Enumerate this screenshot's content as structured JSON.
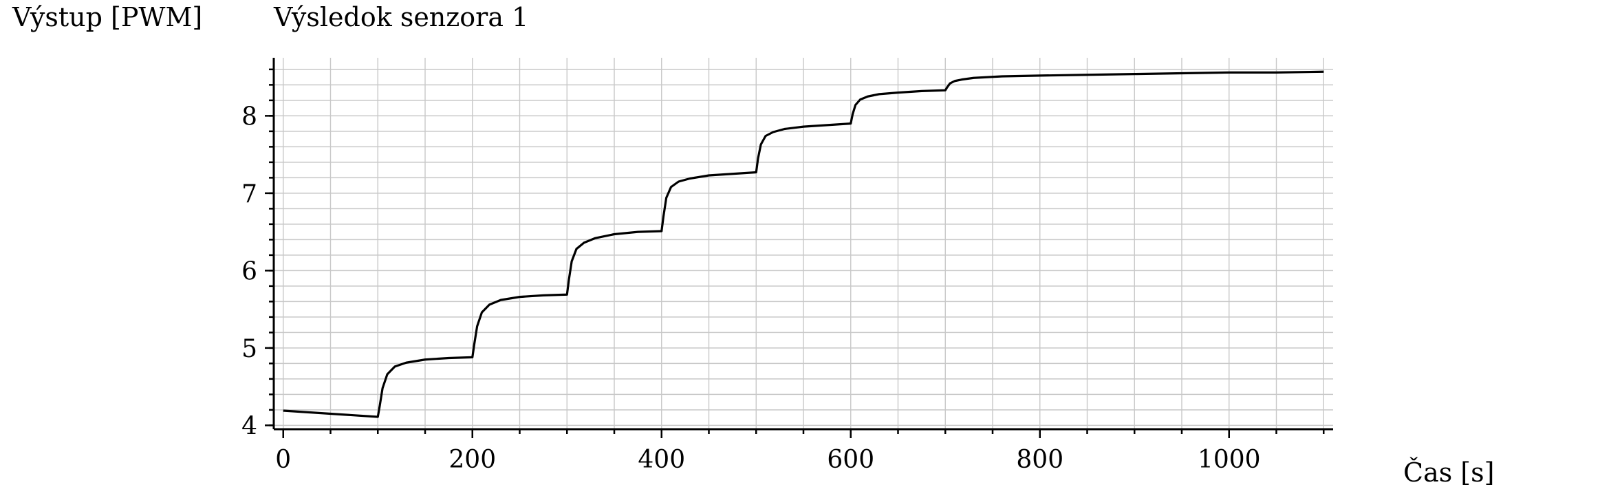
{
  "chart_data": {
    "type": "line",
    "title": "Výsledok senzora 1",
    "xlabel": "Čas [s]",
    "ylabel": "Výstup [PWM]",
    "xlim": [
      -10,
      1110
    ],
    "ylim": [
      3.95,
      8.75
    ],
    "x_ticks": [
      0,
      200,
      400,
      600,
      800,
      1000
    ],
    "y_ticks": [
      4,
      5,
      6,
      7,
      8
    ],
    "x_minor_step": 50,
    "y_minor_step": 0.2,
    "grid": true,
    "series": [
      {
        "color": "#000000",
        "x": [
          0,
          100,
          102,
          105,
          110,
          118,
          130,
          150,
          175,
          200,
          202,
          205,
          210,
          218,
          230,
          250,
          275,
          300,
          302,
          305,
          310,
          318,
          330,
          350,
          375,
          400,
          402,
          405,
          410,
          418,
          430,
          450,
          475,
          500,
          502,
          505,
          510,
          518,
          530,
          550,
          575,
          600,
          602,
          605,
          610,
          618,
          630,
          650,
          675,
          700,
          702,
          705,
          710,
          718,
          730,
          760,
          800,
          850,
          900,
          950,
          1000,
          1050,
          1100
        ],
        "y": [
          4.19,
          4.11,
          4.25,
          4.48,
          4.66,
          4.76,
          4.81,
          4.85,
          4.87,
          4.88,
          5.05,
          5.28,
          5.46,
          5.56,
          5.62,
          5.66,
          5.68,
          5.69,
          5.88,
          6.12,
          6.28,
          6.36,
          6.42,
          6.47,
          6.5,
          6.51,
          6.7,
          6.94,
          7.08,
          7.15,
          7.19,
          7.23,
          7.25,
          7.27,
          7.45,
          7.63,
          7.74,
          7.79,
          7.83,
          7.86,
          7.88,
          7.9,
          8.02,
          8.14,
          8.21,
          8.25,
          8.28,
          8.3,
          8.32,
          8.33,
          8.37,
          8.42,
          8.45,
          8.47,
          8.49,
          8.51,
          8.52,
          8.53,
          8.54,
          8.55,
          8.56,
          8.56,
          8.57
        ]
      }
    ]
  }
}
